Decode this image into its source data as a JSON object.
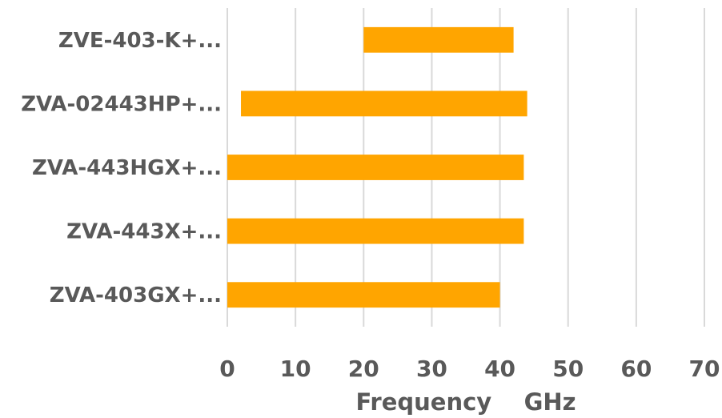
{
  "chart_data": {
    "type": "bar",
    "orientation": "horizontal",
    "bar_style": "floating-range",
    "categories": [
      "ZVE-403-K+...",
      "ZVA-02443HP+...",
      "ZVA-443HGX+...",
      "ZVA-443X+...",
      "ZVA-403GX+..."
    ],
    "series": [
      {
        "color": "#FFA500",
        "ranges": [
          [
            20,
            42
          ],
          [
            2,
            44
          ],
          [
            0,
            43.5
          ],
          [
            0,
            43.5
          ],
          [
            0,
            40
          ]
        ]
      }
    ],
    "xlabel": "Frequency    GHz",
    "xlim": [
      0,
      70
    ],
    "xticks": [
      "0",
      "10",
      "20",
      "30",
      "40",
      "50",
      "60",
      "70"
    ],
    "grid": "vertical"
  }
}
